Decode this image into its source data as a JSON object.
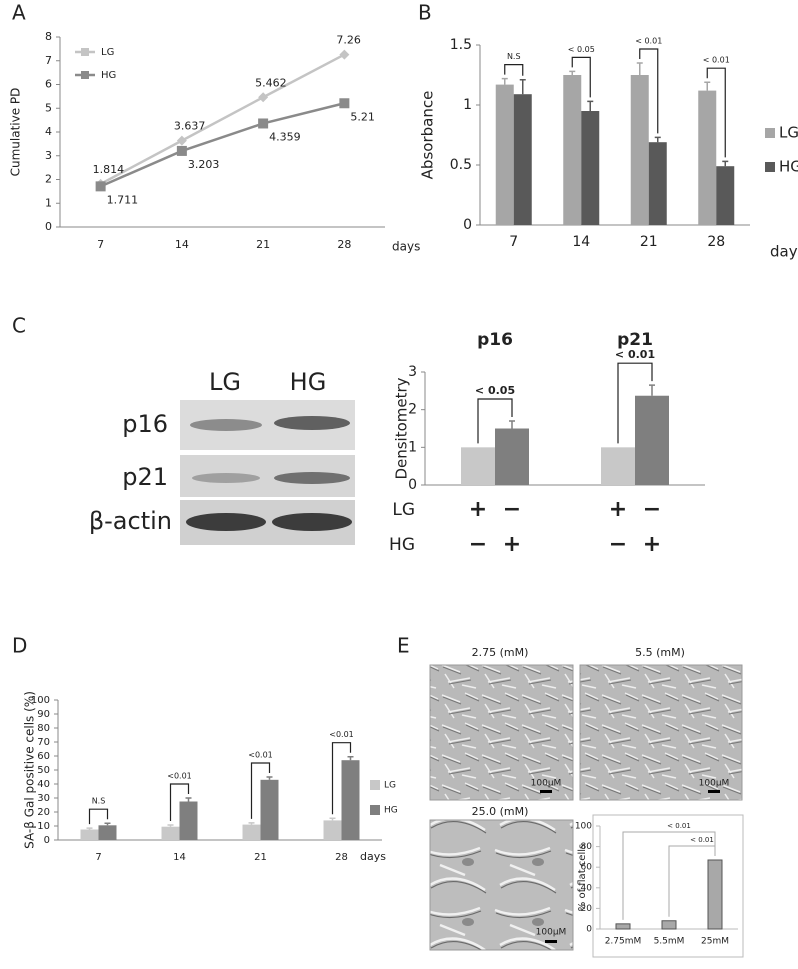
{
  "panel_labels": [
    "A",
    "B",
    "C",
    "D",
    "E"
  ],
  "blot": {
    "lanes": [
      "LG",
      "HG"
    ],
    "rows": [
      "p16",
      "p21",
      "β-actin"
    ]
  },
  "micrographs": [
    {
      "caption": "2.75 (mM)",
      "scale": "100μM"
    },
    {
      "caption": "5.5 (mM)",
      "scale": "100μM"
    },
    {
      "caption": "25.0 (mM)",
      "scale": "100μM"
    }
  ],
  "chart_data": [
    {
      "type": "line",
      "ylabel": "Cumulative PD",
      "xlabel": "days",
      "categories": [
        "7",
        "14",
        "21",
        "28"
      ],
      "series": [
        {
          "name": "LG",
          "color": "#c4c4c4",
          "marker": "diamond",
          "values": [
            1.814,
            3.637,
            5.462,
            7.26
          ]
        },
        {
          "name": "HG",
          "color": "#8a8a8a",
          "marker": "square",
          "values": [
            1.711,
            3.203,
            4.359,
            5.21
          ]
        }
      ],
      "ylim": [
        0,
        8
      ],
      "yticks": [
        0,
        1,
        2,
        3,
        4,
        5,
        6,
        7,
        8
      ],
      "legend": "upper left",
      "grid": false
    },
    {
      "type": "bar",
      "ylabel": "Absorbance",
      "xlabel": "days",
      "categories": [
        "7",
        "14",
        "21",
        "28"
      ],
      "series": [
        {
          "name": "LG",
          "color": "#a6a6a6",
          "values": [
            1.17,
            1.25,
            1.25,
            1.12
          ],
          "errors": [
            0.05,
            0.03,
            0.1,
            0.07
          ]
        },
        {
          "name": "HG",
          "color": "#595959",
          "values": [
            1.09,
            0.95,
            0.69,
            0.49
          ],
          "errors": [
            0.12,
            0.08,
            0.04,
            0.04
          ]
        }
      ],
      "annotations": [
        "N.S",
        "< 0.05",
        "< 0.01",
        "< 0.01"
      ],
      "ylim": [
        0,
        1.5
      ],
      "yticks": [
        0,
        0.5,
        1,
        1.5
      ],
      "legend": "right",
      "grid": false
    },
    {
      "type": "bar",
      "ylabel": "Densitometry",
      "categories": [
        "p16",
        "p21"
      ],
      "series": [
        {
          "color": "#c8c8c8",
          "values": [
            1,
            1
          ]
        },
        {
          "color": "#7f7f7f",
          "values": [
            1.5,
            2.37
          ],
          "errors": [
            0.2,
            0.28
          ]
        }
      ],
      "annotations": [
        "< 0.05",
        "< 0.01"
      ],
      "treatment_rows": [
        {
          "label": "LG",
          "signs": [
            "+",
            "−",
            "+",
            "−"
          ]
        },
        {
          "label": "HG",
          "signs": [
            "−",
            "+",
            "−",
            "+"
          ]
        }
      ],
      "ylim": [
        0,
        3
      ],
      "yticks": [
        0,
        1,
        2,
        3
      ],
      "grid": false
    },
    {
      "type": "bar",
      "ylabel": "SA-β Gal positive cells (%)",
      "xlabel": "days",
      "categories": [
        "7",
        "14",
        "21",
        "28"
      ],
      "series": [
        {
          "name": "LG",
          "color": "#c8c8c8",
          "values": [
            7.5,
            9.5,
            11,
            14
          ],
          "errors": [
            1,
            1.2,
            1.2,
            1.5
          ]
        },
        {
          "name": "HG",
          "color": "#7f7f7f",
          "values": [
            10.5,
            27.5,
            43,
            57
          ],
          "errors": [
            1.5,
            2.5,
            2,
            2.5
          ]
        }
      ],
      "annotations": [
        "N.S",
        "<0.01",
        "<0.01",
        "<0.01"
      ],
      "ylim": [
        0,
        100
      ],
      "yticks": [
        0,
        10,
        20,
        30,
        40,
        50,
        60,
        70,
        80,
        90,
        100
      ],
      "legend": "right",
      "grid": false
    },
    {
      "type": "bar",
      "ylabel": "% of flat cells",
      "categories": [
        "2.75mM",
        "5.5mM",
        "25mM"
      ],
      "values": [
        5,
        8,
        67
      ],
      "color": "#a8a8a8",
      "annotations": [
        "< 0.01",
        "< 0.01"
      ],
      "ylim": [
        0,
        100
      ],
      "yticks": [
        0,
        20,
        40,
        60,
        80,
        100
      ],
      "grid": false
    }
  ]
}
